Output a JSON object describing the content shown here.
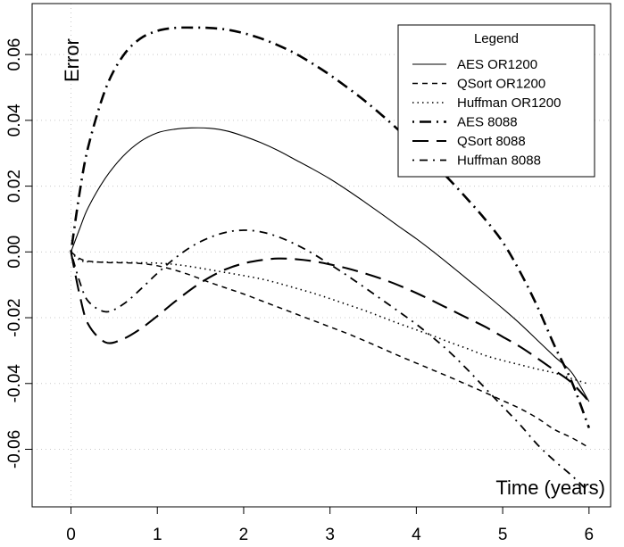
{
  "chart_data": {
    "type": "line",
    "title": "",
    "xlabel": "Time (years)",
    "ylabel": "Error",
    "xlim": [
      -0.45,
      6.25
    ],
    "ylim": [
      -0.0775,
      0.0755
    ],
    "x_ticks": [
      "0",
      "1",
      "2",
      "3",
      "4",
      "5",
      "6"
    ],
    "y_ticks": [
      "-0.06",
      "-0.04",
      "-0.02",
      "0.00",
      "0.02",
      "0.04",
      "0.06"
    ],
    "grid": true,
    "legend": {
      "title": "Legend",
      "position": "top-right"
    },
    "x": [
      0,
      0.1,
      0.2,
      0.4,
      0.6,
      0.8,
      1.0,
      1.2,
      1.4,
      1.6,
      1.8,
      2.0,
      2.2,
      2.4,
      2.6,
      2.8,
      3.0,
      3.2,
      3.4,
      3.6,
      3.8,
      4.0,
      4.2,
      4.4,
      4.6,
      4.8,
      5.0,
      5.2,
      5.4,
      5.6,
      5.8,
      6.0
    ],
    "series": [
      {
        "name": "AES OR1200",
        "dash": "solid",
        "values": [
          0.0,
          0.007,
          0.0135,
          0.0225,
          0.029,
          0.0335,
          0.0362,
          0.0373,
          0.0377,
          0.0376,
          0.0368,
          0.0352,
          0.0332,
          0.0308,
          0.028,
          0.0252,
          0.0222,
          0.0188,
          0.0152,
          0.0115,
          0.0077,
          0.004,
          0.0,
          -0.0042,
          -0.0085,
          -0.0128,
          -0.0172,
          -0.0218,
          -0.0268,
          -0.0318,
          -0.0367,
          -0.0455
        ]
      },
      {
        "name": "QSort OR1200",
        "dash": "short",
        "values": [
          0.0,
          -0.002,
          -0.0028,
          -0.0032,
          -0.0033,
          -0.0035,
          -0.0042,
          -0.0055,
          -0.0072,
          -0.0092,
          -0.011,
          -0.0128,
          -0.0148,
          -0.0168,
          -0.0188,
          -0.0208,
          -0.0228,
          -0.0248,
          -0.027,
          -0.0293,
          -0.0316,
          -0.0338,
          -0.036,
          -0.0382,
          -0.0405,
          -0.0428,
          -0.0452,
          -0.0476,
          -0.0505,
          -0.054,
          -0.0565,
          -0.0595
        ]
      },
      {
        "name": "Huffman OR1200",
        "dash": "dotted",
        "values": [
          0.0,
          -0.0025,
          -0.003,
          -0.0031,
          -0.0032,
          -0.0033,
          -0.0034,
          -0.0038,
          -0.0045,
          -0.0054,
          -0.0063,
          -0.0072,
          -0.0082,
          -0.0095,
          -0.011,
          -0.0125,
          -0.0142,
          -0.016,
          -0.0178,
          -0.0198,
          -0.0218,
          -0.0237,
          -0.0256,
          -0.0276,
          -0.0295,
          -0.0315,
          -0.033,
          -0.0343,
          -0.0356,
          -0.0368,
          -0.0385,
          -0.0402
        ]
      },
      {
        "name": "AES 8088",
        "dash": "dashdot-thick",
        "values": [
          0.0,
          0.018,
          0.032,
          0.0495,
          0.0595,
          0.0648,
          0.0672,
          0.0681,
          0.0682,
          0.0681,
          0.0676,
          0.0665,
          0.0649,
          0.0628,
          0.0603,
          0.0572,
          0.0538,
          0.05,
          0.046,
          0.0416,
          0.0369,
          0.032,
          0.0269,
          0.0215,
          0.0158,
          0.0098,
          0.003,
          -0.006,
          -0.0165,
          -0.0285,
          -0.0395,
          -0.0535
        ]
      },
      {
        "name": "QSort 8088",
        "dash": "long",
        "values": [
          0.0,
          -0.013,
          -0.022,
          -0.0275,
          -0.0265,
          -0.0235,
          -0.0195,
          -0.0152,
          -0.0112,
          -0.0078,
          -0.0052,
          -0.0035,
          -0.0025,
          -0.002,
          -0.0022,
          -0.0028,
          -0.0038,
          -0.005,
          -0.0065,
          -0.0082,
          -0.0102,
          -0.0125,
          -0.015,
          -0.0176,
          -0.0202,
          -0.0228,
          -0.0258,
          -0.0288,
          -0.0323,
          -0.036,
          -0.0398,
          -0.0455
        ]
      },
      {
        "name": "Huffman 8088",
        "dash": "dashdot",
        "values": [
          0.0,
          -0.009,
          -0.015,
          -0.0182,
          -0.016,
          -0.0115,
          -0.0065,
          -0.002,
          0.0017,
          0.0043,
          0.006,
          0.0066,
          0.0061,
          0.0046,
          0.0023,
          -0.0005,
          -0.0038,
          -0.0072,
          -0.0108,
          -0.0145,
          -0.0182,
          -0.022,
          -0.0262,
          -0.0308,
          -0.036,
          -0.0415,
          -0.047,
          -0.0525,
          -0.0585,
          -0.0635,
          -0.068,
          -0.073
        ]
      }
    ]
  }
}
